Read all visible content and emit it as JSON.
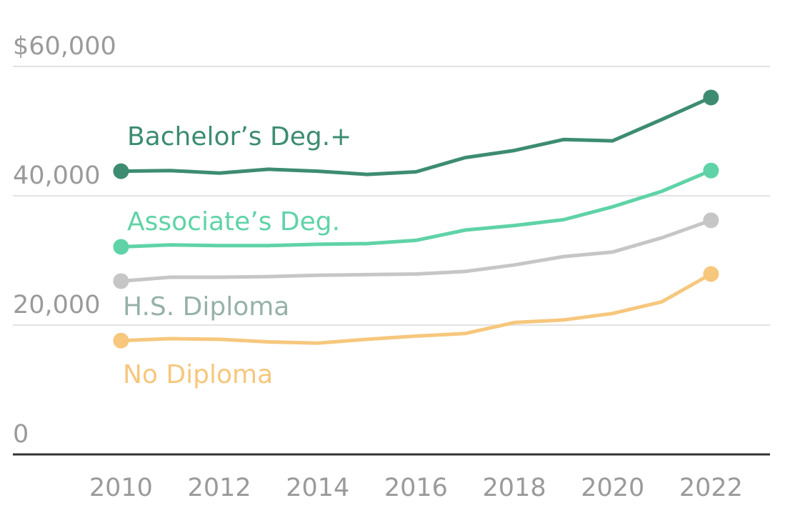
{
  "chart_data": {
    "type": "line",
    "x": [
      2010,
      2011,
      2012,
      2013,
      2014,
      2015,
      2016,
      2017,
      2018,
      2019,
      2020,
      2021,
      2022
    ],
    "series": [
      {
        "name": "Bachelor’s Deg.+",
        "color": "#3d8c72",
        "values": [
          43800,
          43900,
          43500,
          44100,
          43800,
          43300,
          43700,
          45900,
          47000,
          48700,
          48500,
          51800,
          55200
        ]
      },
      {
        "name": "Associate’s Deg.",
        "color": "#5fd3a7",
        "values": [
          32100,
          32400,
          32300,
          32300,
          32500,
          32600,
          33100,
          34700,
          35400,
          36300,
          38300,
          40700,
          43900
        ]
      },
      {
        "name": "H.S. Diploma",
        "color": "#c6c6c6",
        "values": [
          26800,
          27400,
          27400,
          27500,
          27700,
          27800,
          27900,
          28300,
          29300,
          30600,
          31300,
          33500,
          36200
        ]
      },
      {
        "name": "No Diploma",
        "color": "#f6c77d",
        "values": [
          17600,
          17900,
          17800,
          17400,
          17200,
          17800,
          18300,
          18700,
          20400,
          20800,
          21800,
          23600,
          27900
        ]
      }
    ],
    "series_label_colors": [
      "#3d8c72",
      "#5fd3a7",
      "#97b1a9",
      "#f6c77d"
    ],
    "markers": "first-and-last-point",
    "title": "",
    "xlabel": "",
    "ylabel": "",
    "xlim": [
      2007.8,
      2023.2
    ],
    "ylim": [
      0,
      60000
    ],
    "y_ticks": [
      {
        "value": 0,
        "label": "0"
      },
      {
        "value": 20000,
        "label": "20,000"
      },
      {
        "value": 40000,
        "label": "40,000"
      },
      {
        "value": 60000,
        "label": "$60,000"
      }
    ],
    "x_ticks": [
      {
        "value": 2010,
        "label": "2010"
      },
      {
        "value": 2012,
        "label": "2012"
      },
      {
        "value": 2014,
        "label": "2014"
      },
      {
        "value": 2016,
        "label": "2016"
      },
      {
        "value": 2018,
        "label": "2018"
      },
      {
        "value": 2020,
        "label": "2020"
      },
      {
        "value": 2022,
        "label": "2022"
      }
    ],
    "grid": "horizontal",
    "legend": "none (series labeled directly on the lines)",
    "colors": {
      "gridline": "#e3e3e3",
      "baseline": "#333333",
      "tick_label": "#9a9a9a"
    }
  }
}
